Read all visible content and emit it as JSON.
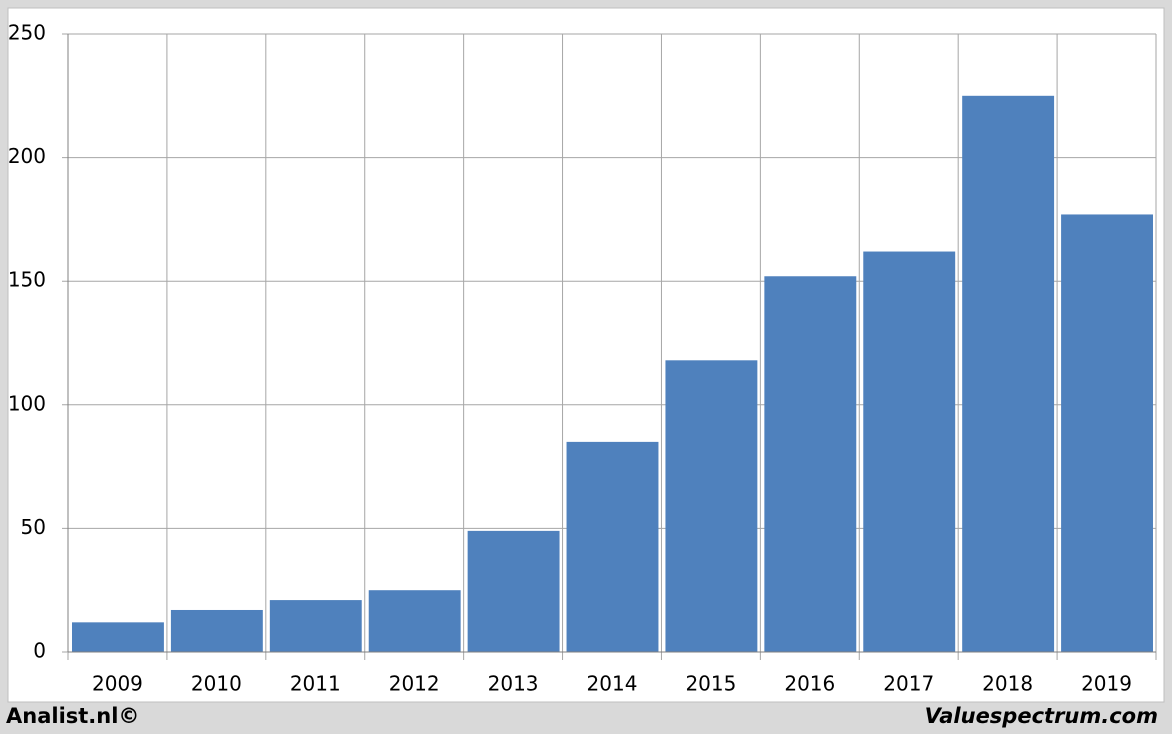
{
  "chart_data": {
    "type": "bar",
    "categories": [
      "2009",
      "2010",
      "2011",
      "2012",
      "2013",
      "2014",
      "2015",
      "2016",
      "2017",
      "2018",
      "2019"
    ],
    "values": [
      12,
      17,
      21,
      25,
      49,
      85,
      118,
      152,
      162,
      225,
      177
    ],
    "color": "#4f81bd",
    "ylim": [
      0,
      250
    ],
    "yticks": [
      0,
      50,
      100,
      150,
      200,
      250
    ],
    "grid": true,
    "footer_left": "Analist.nl©",
    "footer_right": "Valuespectrum.com"
  }
}
